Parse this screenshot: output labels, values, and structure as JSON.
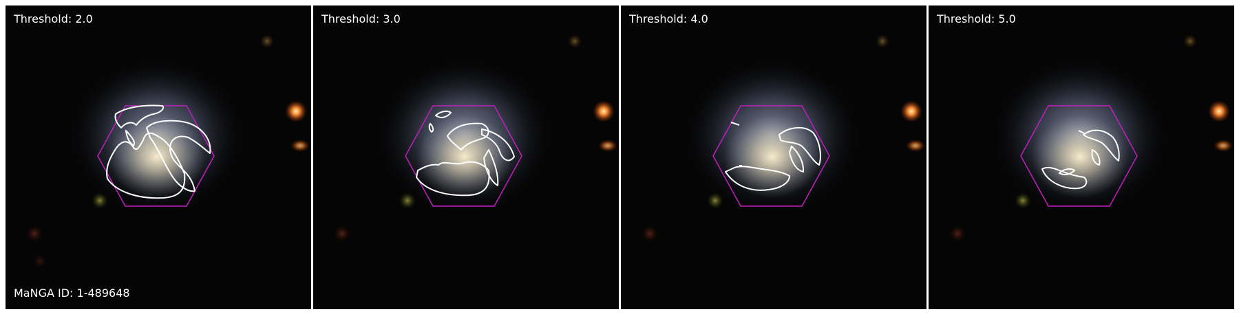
{
  "panels": [
    {
      "threshold_label": "Threshold: 2.0"
    },
    {
      "threshold_label": "Threshold: 3.0"
    },
    {
      "threshold_label": "Threshold: 4.0"
    },
    {
      "threshold_label": "Threshold: 5.0"
    }
  ],
  "galaxy_id_label": "MaNGA ID: 1-489648",
  "colors": {
    "background": "#050505",
    "hexagon": "#c020c0",
    "contour": "#ffffff",
    "label_text": "#ffffff",
    "foreground_star": "#ff7a2a"
  }
}
